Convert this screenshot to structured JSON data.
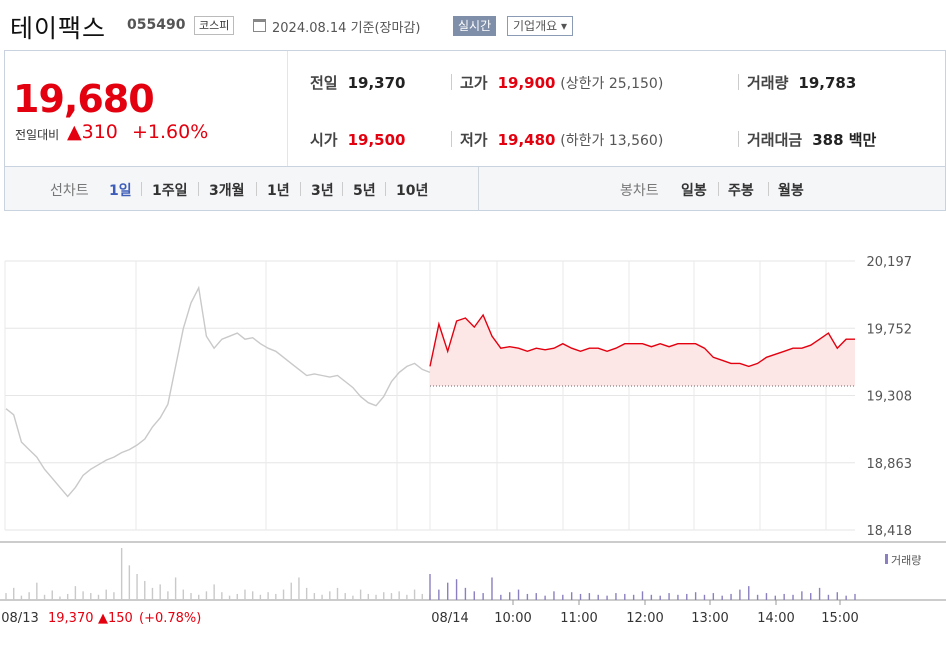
{
  "header": {
    "name": "테이팩스",
    "code": "055490",
    "market": "코스피",
    "date": "2024.08.14  기준(장마감)",
    "realtime": "실시간",
    "overview": "기업개요 ▾"
  },
  "price": {
    "current": "19,680",
    "change_label": "전일대비",
    "change": "▲310",
    "change_pct": "+1.60%",
    "prev_label": "전일",
    "prev": "19,370",
    "high_label": "고가",
    "high": "19,900",
    "upper_limit": "(상한가 25,150)",
    "volume_label": "거래량",
    "volume": "19,783",
    "open_label": "시가",
    "open": "19,500",
    "low_label": "저가",
    "low": "19,480",
    "lower_limit": "(하한가 13,560)",
    "amount_label": "거래대금",
    "amount": "388 백만"
  },
  "tabs": {
    "line_label": "선차트",
    "line": [
      "1일",
      "1주일",
      "3개월",
      "1년",
      "3년",
      "5년",
      "10년"
    ],
    "active": "1일",
    "candle_label": "봉차트",
    "candle": [
      "일봉",
      "주봉",
      "월봉"
    ]
  },
  "colors": {
    "up": "#e3000f",
    "prev_day": "#c9c9c9",
    "volume_today": "#8c7fc0",
    "fill": "#fde6e6"
  },
  "chart_data": {
    "type": "line",
    "ylim": [
      18418,
      20197
    ],
    "y_ticks": [
      "20,197",
      "19,752",
      "19,308",
      "18,863",
      "18,418"
    ],
    "x_ticks": [
      "08/13",
      "08/14",
      "10:00",
      "11:00",
      "12:00",
      "13:00",
      "14:00",
      "15:00"
    ],
    "prev_close": 19370,
    "volume_legend": "거래량",
    "prev_day_summary": {
      "date": "08/13",
      "close": "19,370",
      "change": "▲150",
      "change_pct": "(+0.78%)"
    },
    "series": [
      {
        "values": [
          19220,
          19180,
          19000,
          18950,
          18900,
          18820,
          18760,
          18700,
          18640,
          18700,
          18780,
          18820,
          18850,
          18880,
          18900,
          18930,
          18950,
          18980,
          19020,
          19100,
          19160,
          19250,
          19500,
          19750,
          19920,
          20020,
          19700,
          19620,
          19680,
          19700,
          19720,
          19680,
          19690,
          19650,
          19620,
          19600,
          19560,
          19520,
          19480,
          19440,
          19450,
          19440,
          19430,
          19440,
          19400,
          19360,
          19300,
          19260,
          19240,
          19300,
          19400,
          19460,
          19500,
          19520,
          19480,
          19460
        ]
      },
      {
        "values": [
          19500,
          19780,
          19600,
          19800,
          19820,
          19760,
          19840,
          19700,
          19620,
          19630,
          19620,
          19600,
          19620,
          19610,
          19620,
          19650,
          19620,
          19600,
          19620,
          19620,
          19600,
          19620,
          19650,
          19650,
          19650,
          19630,
          19650,
          19630,
          19650,
          19650,
          19650,
          19620,
          19560,
          19540,
          19520,
          19520,
          19500,
          19520,
          19560,
          19580,
          19600,
          19620,
          19620,
          19640,
          19680,
          19720,
          19620,
          19680,
          19680
        ]
      }
    ],
    "volume": {
      "prev_day": [
        8,
        14,
        5,
        9,
        20,
        6,
        11,
        4,
        7,
        16,
        10,
        8,
        6,
        12,
        9,
        60,
        40,
        30,
        22,
        14,
        18,
        10,
        26,
        12,
        8,
        6,
        10,
        18,
        9,
        5,
        7,
        12,
        10,
        6,
        9,
        7,
        12,
        20,
        26,
        14,
        8,
        6,
        10,
        14,
        8,
        5,
        12,
        7,
        6,
        9,
        8,
        10,
        6,
        12,
        7,
        6
      ],
      "today": [
        30,
        12,
        20,
        24,
        14,
        10,
        8,
        26,
        6,
        9,
        12,
        7,
        8,
        5,
        10,
        6,
        9,
        7,
        8,
        6,
        5,
        8,
        7,
        6,
        10,
        6,
        5,
        8,
        6,
        7,
        9,
        6,
        8,
        5,
        7,
        12,
        16,
        6,
        8,
        5,
        7,
        6,
        10,
        8,
        14,
        6,
        9,
        5,
        7
      ]
    }
  }
}
